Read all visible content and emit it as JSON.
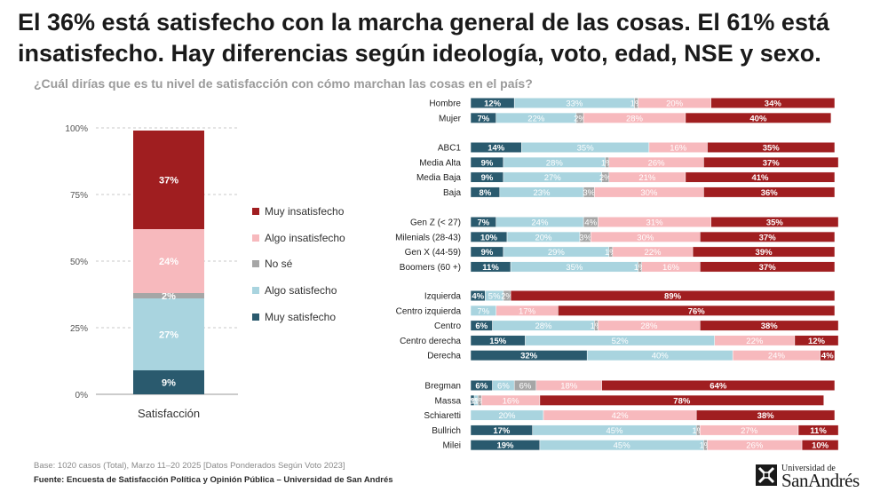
{
  "title": "El 36% está satisfecho con la marcha general de las cosas. El 61% está insatisfecho. Hay diferencias según ideología, voto, edad, NSE y sexo.",
  "subtitle": "¿Cuál dirías que es tu nivel de satisfacción con cómo marchan las cosas en el país?",
  "base_note": "Base: 1020 casos (Total), Marzo 11–20 2025 [Datos Ponderados Según Voto 2023]",
  "source_note": "Fuente: Encuesta de Satisfacción Política y Opinión Pública – Universidad de San Andrés",
  "logo": {
    "small": "Universidad de",
    "big": "SanAndrés"
  },
  "colors": {
    "muy_satisfecho": "#2a5a6e",
    "algo_satisfecho": "#a9d4df",
    "no_se": "#a6a6a6",
    "algo_insatisfecho": "#f7b9bd",
    "muy_insatisfecho": "#a01e20"
  },
  "chart_data": [
    {
      "type": "bar",
      "stacked": true,
      "categories": [
        "Satisfacción"
      ],
      "series": [
        {
          "name": "Muy satisfecho",
          "values": [
            9
          ]
        },
        {
          "name": "Algo satisfecho",
          "values": [
            27
          ]
        },
        {
          "name": "No sé",
          "values": [
            2
          ]
        },
        {
          "name": "Algo insatisfecho",
          "values": [
            24
          ]
        },
        {
          "name": "Muy insatisfecho",
          "values": [
            37
          ]
        }
      ],
      "yticks": [
        "0%",
        "25%",
        "50%",
        "75%",
        "100%"
      ],
      "ylim": [
        0,
        100
      ],
      "grid": true,
      "legend": "right"
    },
    {
      "type": "bar",
      "orientation": "horizontal",
      "stacked": true,
      "series_names": [
        "Muy satisfecho",
        "Algo satisfecho",
        "No sé",
        "Algo insatisfecho",
        "Muy insatisfecho"
      ],
      "groups": [
        {
          "rows": [
            {
              "label": "Hombre",
              "values": [
                12,
                33,
                1,
                20,
                34
              ]
            },
            {
              "label": "Mujer",
              "values": [
                7,
                22,
                2,
                28,
                40
              ]
            }
          ]
        },
        {
          "rows": [
            {
              "label": "ABC1",
              "values": [
                14,
                35,
                0,
                16,
                35
              ]
            },
            {
              "label": "Media Alta",
              "values": [
                9,
                28,
                1,
                26,
                37
              ]
            },
            {
              "label": "Media Baja",
              "values": [
                9,
                27,
                2,
                21,
                41
              ]
            },
            {
              "label": "Baja",
              "values": [
                8,
                23,
                3,
                30,
                36
              ]
            }
          ]
        },
        {
          "rows": [
            {
              "label": "Gen Z (< 27)",
              "values": [
                7,
                24,
                4,
                31,
                35
              ]
            },
            {
              "label": "Milenials (28-43)",
              "values": [
                10,
                20,
                3,
                30,
                37
              ]
            },
            {
              "label": "Gen X (44-59)",
              "values": [
                9,
                29,
                1,
                22,
                39
              ]
            },
            {
              "label": "Boomers (60 +)",
              "values": [
                11,
                35,
                1,
                16,
                37
              ]
            }
          ]
        },
        {
          "rows": [
            {
              "label": "Izquierda",
              "values": [
                4,
                5,
                2,
                0,
                89
              ]
            },
            {
              "label": "Centro izquierda",
              "values": [
                0,
                7,
                0,
                17,
                76
              ]
            },
            {
              "label": "Centro",
              "values": [
                6,
                28,
                1,
                28,
                38
              ]
            },
            {
              "label": "Centro derecha",
              "values": [
                15,
                52,
                0,
                22,
                12
              ]
            },
            {
              "label": "Derecha",
              "values": [
                32,
                40,
                0,
                24,
                4
              ]
            }
          ]
        },
        {
          "rows": [
            {
              "label": "Bregman",
              "values": [
                6,
                6,
                6,
                18,
                64
              ]
            },
            {
              "label": "Massa",
              "values": [
                1,
                1,
                1,
                16,
                78
              ]
            },
            {
              "label": "Schiaretti",
              "values": [
                0,
                20,
                0,
                42,
                38
              ]
            },
            {
              "label": "Bullrich",
              "values": [
                17,
                45,
                1,
                27,
                11
              ]
            },
            {
              "label": "Milei",
              "values": [
                19,
                45,
                1,
                26,
                10
              ]
            }
          ]
        }
      ],
      "xlim": [
        0,
        100
      ]
    }
  ]
}
